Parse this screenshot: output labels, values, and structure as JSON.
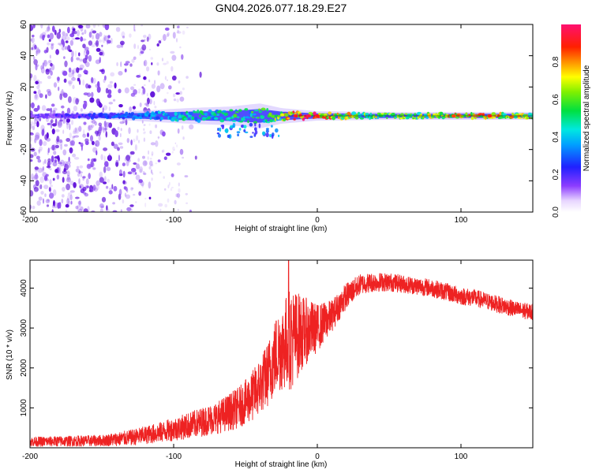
{
  "title": "GN04.2026.077.18.29.E27",
  "colors": {
    "snr_line": "#ee2222",
    "axis": "#000000",
    "background": "#ffffff",
    "band_center": "#ff2020",
    "scatter": "#6a14e0"
  },
  "chart_data": [
    {
      "type": "heatmap",
      "title": "GN04.2026.077.18.29.E27",
      "xlabel": "Height of straight line (km)",
      "ylabel": "Frequency (Hz)",
      "xlim": [
        -200,
        150
      ],
      "ylim": [
        -60,
        60
      ],
      "xticks": [
        -200,
        -100,
        0,
        100
      ],
      "yticks": [
        -60,
        -40,
        -20,
        0,
        20,
        40,
        60
      ],
      "xtick_labels": [
        "-200",
        "-100",
        "0",
        "100"
      ],
      "ytick_labels": [
        "-60",
        "-40",
        "-20",
        "0",
        "20",
        "40",
        "60"
      ],
      "colorbar": {
        "label": "Normalized spectral amplitude",
        "range": [
          0,
          1
        ],
        "ticks": [
          0.0,
          0.2,
          0.4,
          0.6,
          0.8
        ],
        "tick_labels": [
          "0.0",
          "0.2",
          "0.4",
          "0.6",
          "0.8"
        ]
      },
      "band": {
        "center_frequency_hz": 1.5,
        "half_width_hz": [
          [
            -200,
            1.5
          ],
          [
            -140,
            2.5
          ],
          [
            -110,
            4
          ],
          [
            -90,
            5
          ],
          [
            -60,
            6
          ],
          [
            -40,
            8
          ],
          [
            -25,
            5
          ],
          [
            0,
            3
          ],
          [
            50,
            2.5
          ],
          [
            150,
            2.5
          ]
        ],
        "amplitude_profile": [
          [
            -200,
            0.15
          ],
          [
            -150,
            0.25
          ],
          [
            -120,
            0.35
          ],
          [
            -100,
            0.45
          ],
          [
            -60,
            0.5
          ],
          [
            -30,
            0.55
          ],
          [
            -15,
            0.85
          ],
          [
            0,
            0.9
          ],
          [
            20,
            0.7
          ],
          [
            60,
            0.6
          ],
          [
            100,
            0.75
          ],
          [
            150,
            0.7
          ]
        ]
      },
      "scatter_density": [
        [
          -200,
          0.9
        ],
        [
          -160,
          0.8
        ],
        [
          -140,
          0.55
        ],
        [
          -125,
          0.3
        ],
        [
          -100,
          0.1
        ],
        [
          -80,
          0.03
        ],
        [
          0,
          0.0
        ],
        [
          150,
          0.0
        ]
      ]
    },
    {
      "type": "line",
      "xlabel": "Height of straight line (km)",
      "ylabel": "SNR (10 * v/v)",
      "xlim": [
        -200,
        150
      ],
      "ylim": [
        0,
        4700
      ],
      "xticks": [
        -200,
        -100,
        0,
        100
      ],
      "yticks": [
        1000,
        2000,
        3000,
        4000
      ],
      "xtick_labels": [
        "-200",
        "-100",
        "0",
        "100"
      ],
      "ytick_labels": [
        "1000",
        "2000",
        "3000",
        "4000"
      ],
      "series": [
        {
          "name": "SNR",
          "baseline": {
            "x": [
              -200,
              -150,
              -130,
              -110,
              -90,
              -70,
              -55,
              -45,
              -35,
              -28,
              -20,
              -10,
              0,
              10,
              20,
              30,
              40,
              50,
              60,
              70,
              80,
              90,
              100,
              110,
              120,
              130,
              140,
              150
            ],
            "y": [
              150,
              180,
              250,
              380,
              550,
              750,
              1000,
              1300,
              1800,
              2400,
              2700,
              2900,
              3000,
              3300,
              3800,
              4100,
              4150,
              4150,
              4100,
              4050,
              4000,
              3900,
              3800,
              3750,
              3650,
              3550,
              3450,
              3400
            ]
          },
          "noise": {
            "x": [
              -200,
              -150,
              -110,
              -70,
              -50,
              -35,
              -25,
              -18,
              -10,
              0,
              10,
              30,
              60,
              100,
              150
            ],
            "amplitude": [
              120,
              140,
              250,
              400,
              550,
              800,
              1100,
              1300,
              900,
              600,
              400,
              250,
              220,
              220,
              200
            ]
          },
          "spike": {
            "x": -20,
            "y": 4700
          }
        }
      ]
    }
  ]
}
